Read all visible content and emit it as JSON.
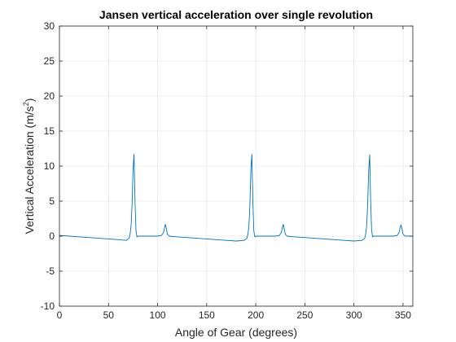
{
  "chart_data": {
    "type": "line",
    "title": "Jansen vertical acceleration over single revolution",
    "xlabel": "Angle of Gear (degrees)",
    "ylabel": {
      "prefix": "Vertical Acceleration (m/s",
      "sup": "2",
      "suffix": ")"
    },
    "xlim": [
      0,
      360
    ],
    "ylim": [
      -10,
      30
    ],
    "xticks": [
      0,
      50,
      100,
      150,
      200,
      250,
      300,
      350
    ],
    "yticks": [
      -10,
      -5,
      0,
      5,
      10,
      15,
      20,
      25,
      30
    ],
    "grid": true,
    "series": [
      {
        "color": "#0072bd",
        "x": [
          0,
          10,
          20,
          30,
          40,
          50,
          60,
          68,
          71,
          72,
          73,
          74,
          75,
          76,
          77,
          78,
          79,
          80,
          85,
          90,
          95,
          100,
          104,
          106,
          107,
          108,
          109,
          110,
          112,
          120,
          130,
          140,
          150,
          160,
          170,
          180,
          188,
          191,
          192,
          193,
          194,
          195,
          196,
          197,
          198,
          199,
          200,
          205,
          210,
          215,
          220,
          224,
          226,
          227,
          228,
          229,
          230,
          232,
          240,
          250,
          260,
          270,
          280,
          290,
          300,
          308,
          311,
          312,
          313,
          314,
          315,
          316,
          317,
          318,
          319,
          320,
          325,
          330,
          335,
          340,
          344,
          346,
          347,
          348,
          349,
          350,
          352,
          360
        ],
        "y": [
          0.1,
          0.0,
          -0.1,
          -0.2,
          -0.3,
          -0.4,
          -0.5,
          -0.6,
          -0.3,
          0.3,
          1.5,
          4.5,
          9.5,
          11.7,
          5.0,
          0.8,
          -0.1,
          0.0,
          0.0,
          0.0,
          0.0,
          0.0,
          0.1,
          0.5,
          1.2,
          1.7,
          1.0,
          0.3,
          0.0,
          -0.1,
          -0.2,
          -0.3,
          -0.4,
          -0.5,
          -0.6,
          -0.7,
          -0.6,
          -0.3,
          0.3,
          1.5,
          4.5,
          9.5,
          11.7,
          5.0,
          0.8,
          -0.1,
          0.0,
          0.0,
          0.0,
          0.0,
          0.0,
          0.1,
          0.5,
          1.2,
          1.7,
          1.0,
          0.3,
          0.0,
          -0.1,
          -0.2,
          -0.3,
          -0.4,
          -0.5,
          -0.6,
          -0.7,
          -0.6,
          -0.3,
          0.3,
          1.5,
          4.5,
          9.5,
          11.6,
          5.0,
          0.8,
          -0.1,
          0.0,
          0.0,
          0.0,
          0.0,
          0.0,
          0.1,
          0.5,
          1.2,
          1.6,
          1.0,
          0.3,
          0.0,
          0.0
        ]
      }
    ]
  }
}
